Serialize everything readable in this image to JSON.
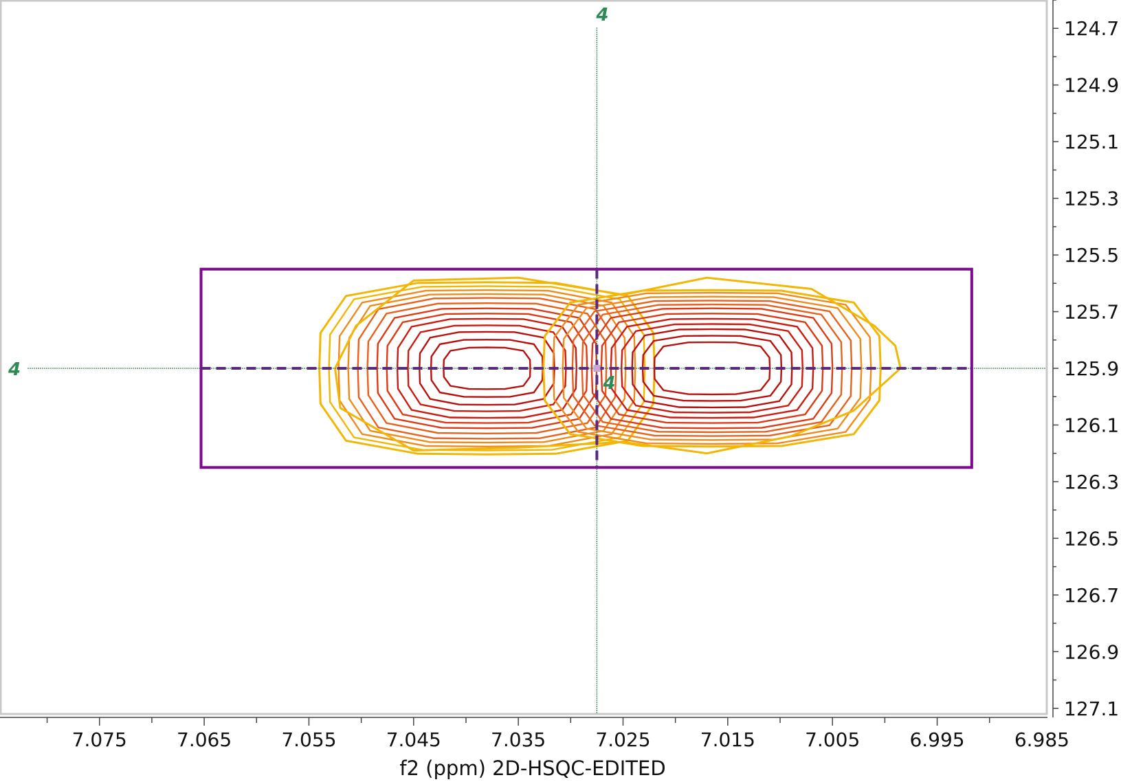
{
  "chart_data": {
    "type": "contour",
    "xlabel": "f2 (ppm) 2D-HSQC-EDITED",
    "ylabel": "",
    "xlim": [
      7.0845,
      6.9846
    ],
    "ylim": [
      124.6,
      127.12
    ],
    "x_reversed": true,
    "y_reversed": true,
    "x_tick_labels": [
      "7.075",
      "7.065",
      "7.055",
      "7.045",
      "7.035",
      "7.025",
      "7.015",
      "7.005",
      "6.995",
      "6.985"
    ],
    "x_tick_values": [
      7.075,
      7.065,
      7.055,
      7.045,
      7.035,
      7.025,
      7.015,
      7.005,
      6.995,
      6.985
    ],
    "y_tick_labels": [
      "124.7",
      "124.9",
      "125.1",
      "125.3",
      "125.5",
      "125.7",
      "125.9",
      "126.1",
      "126.3",
      "126.5",
      "126.7",
      "126.9",
      "127.1"
    ],
    "y_tick_values": [
      124.7,
      124.9,
      125.1,
      125.3,
      125.5,
      125.7,
      125.9,
      126.1,
      126.3,
      126.5,
      126.7,
      126.9,
      127.1
    ],
    "x_minor_tick_step": 0.005,
    "y_minor_tick_step": 0.1,
    "peak": {
      "label": "4",
      "x": 7.0275,
      "y": 125.9,
      "color": "#2e8b57"
    },
    "integration_region": {
      "x": [
        7.0653,
        6.9917
      ],
      "y": [
        125.55,
        126.25
      ],
      "color": "#7b0a8c"
    },
    "contour_colors": [
      "#f2b705",
      "#f08a1a",
      "#e8601c",
      "#dd3a14",
      "#cc1a10",
      "#b8100c"
    ],
    "contour_lobes": [
      {
        "name": "left",
        "center": [
          7.038,
          125.9
        ],
        "half_widths": [
          [
            0.0174,
            0.33
          ],
          [
            0.0164,
            0.315
          ],
          [
            0.0154,
            0.3
          ],
          [
            0.0144,
            0.285
          ],
          [
            0.0134,
            0.27
          ],
          [
            0.0124,
            0.25
          ],
          [
            0.0114,
            0.23
          ],
          [
            0.0104,
            0.21
          ],
          [
            0.0093,
            0.19
          ],
          [
            0.0082,
            0.165
          ],
          [
            0.007,
            0.14
          ],
          [
            0.0058,
            0.11
          ],
          [
            0.0045,
            0.08
          ]
        ]
      },
      {
        "name": "right",
        "center": [
          7.0165,
          125.9
        ],
        "half_widths": [
          [
            0.0175,
            0.3
          ],
          [
            0.0165,
            0.29
          ],
          [
            0.0155,
            0.275
          ],
          [
            0.0145,
            0.26
          ],
          [
            0.0135,
            0.245
          ],
          [
            0.0125,
            0.23
          ],
          [
            0.0115,
            0.21
          ],
          [
            0.0105,
            0.19
          ],
          [
            0.0094,
            0.17
          ],
          [
            0.0083,
            0.15
          ],
          [
            0.0072,
            0.125
          ],
          [
            0.006,
            0.1
          ]
        ]
      }
    ],
    "outer_envelope": {
      "x": [
        7.0525,
        6.9985
      ],
      "y": [
        125.58,
        126.2
      ]
    },
    "grid": false
  }
}
